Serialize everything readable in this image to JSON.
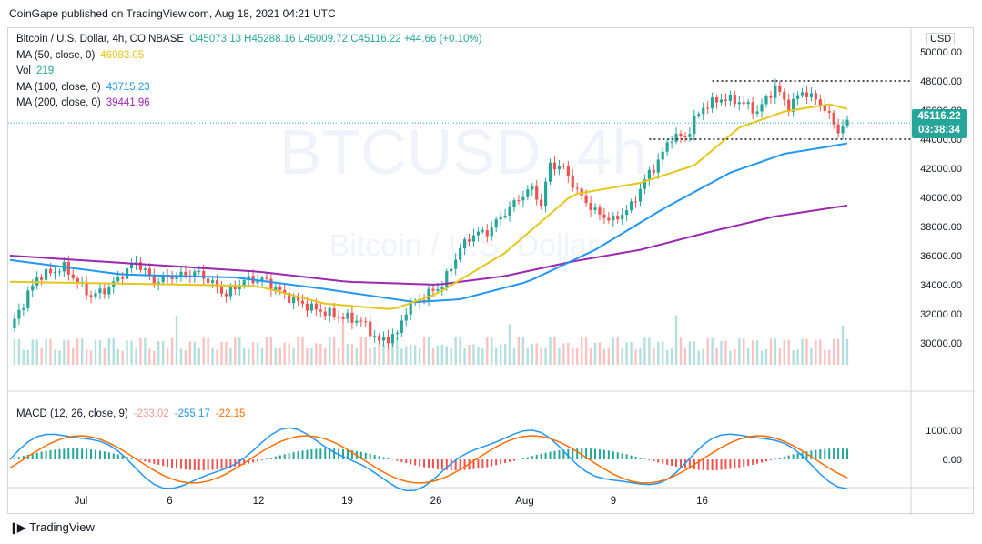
{
  "header": {
    "published": "CoinGape published on TradingView.com, Aug 18, 2021 04:21 UTC"
  },
  "legend": {
    "symbol": "Bitcoin / U.S. Dollar, 4h, COINBASE",
    "ohlc": "O45073.13 H45288.16 L45009.72 C45116.22 +44.66 (+0.10%)",
    "indicators": [
      {
        "label": "MA (50, close, 0)",
        "value": "46083.05",
        "color": "#e6c619"
      },
      {
        "label": "Vol",
        "value": "219",
        "color": "#26a69a"
      },
      {
        "label": "MA (100, close, 0)",
        "value": "43715.23",
        "color": "#2196f3"
      },
      {
        "label": "MA (200, close, 0)",
        "value": "39441.96",
        "color": "#9c27b0"
      }
    ]
  },
  "macd_legend": {
    "label": "MACD (12, 26, close, 9)",
    "values": [
      {
        "value": "-233.02",
        "color": "#ef9a9a"
      },
      {
        "value": "-255.17",
        "color": "#2196f3"
      },
      {
        "value": "-22.15",
        "color": "#ff6d00"
      }
    ]
  },
  "price_badge": {
    "price": "45116.22",
    "countdown": "03:38:34"
  },
  "currency": "USD",
  "watermark": {
    "ticker": "BTCUSD, 4h",
    "name": "Bitcoin / U.S. Dollar"
  },
  "footer": {
    "brand": "TradingView"
  },
  "chart_data": {
    "type": "candlestick",
    "x_ticks": [
      "Jul",
      "6",
      "12",
      "19",
      "26",
      "Aug",
      "9",
      "16"
    ],
    "y_ticks": [
      "30000.00",
      "32000.00",
      "34000.00",
      "36000.00",
      "38000.00",
      "40000.00",
      "42000.00",
      "44000.00",
      "46000.00",
      "48000.00",
      "50000.00"
    ],
    "macd_y_ticks": [
      "1000.00",
      "0.00"
    ],
    "ylim": [
      28500,
      51000
    ],
    "close_path": [
      [
        0,
        31000
      ],
      [
        6,
        34500
      ],
      [
        12,
        35200
      ],
      [
        18,
        33200
      ],
      [
        22,
        33800
      ],
      [
        28,
        35600
      ],
      [
        32,
        34200
      ],
      [
        36,
        34600
      ],
      [
        42,
        34800
      ],
      [
        48,
        33300
      ],
      [
        52,
        34300
      ],
      [
        56,
        34400
      ],
      [
        62,
        33100
      ],
      [
        67,
        32400
      ],
      [
        72,
        31900
      ],
      [
        78,
        31500
      ],
      [
        82,
        30100
      ],
      [
        86,
        30600
      ],
      [
        88,
        32300
      ],
      [
        92,
        33200
      ],
      [
        96,
        34000
      ],
      [
        98,
        35200
      ],
      [
        100,
        36500
      ],
      [
        103,
        37500
      ],
      [
        106,
        37600
      ],
      [
        110,
        39000
      ],
      [
        114,
        40200
      ],
      [
        116,
        40600
      ],
      [
        118,
        39500
      ],
      [
        120,
        42300
      ],
      [
        123,
        42000
      ],
      [
        126,
        40400
      ],
      [
        130,
        39000
      ],
      [
        134,
        38400
      ],
      [
        138,
        39400
      ],
      [
        141,
        41200
      ],
      [
        144,
        42500
      ],
      [
        147,
        44200
      ],
      [
        150,
        44100
      ],
      [
        152,
        45300
      ],
      [
        154,
        46200
      ],
      [
        158,
        46800
      ],
      [
        162,
        46600
      ],
      [
        166,
        45900
      ],
      [
        170,
        47600
      ],
      [
        173,
        46200
      ],
      [
        176,
        47300
      ],
      [
        180,
        46500
      ],
      [
        184,
        44600
      ],
      [
        186,
        45116
      ]
    ],
    "ma50": [
      [
        0,
        34200
      ],
      [
        20,
        34100
      ],
      [
        40,
        34000
      ],
      [
        55,
        33900
      ],
      [
        70,
        32700
      ],
      [
        85,
        32300
      ],
      [
        95,
        33400
      ],
      [
        110,
        36200
      ],
      [
        125,
        40200
      ],
      [
        140,
        41000
      ],
      [
        152,
        42200
      ],
      [
        162,
        44800
      ],
      [
        172,
        45900
      ],
      [
        182,
        46400
      ],
      [
        186,
        46083
      ]
    ],
    "ma100": [
      [
        0,
        35700
      ],
      [
        25,
        34700
      ],
      [
        50,
        34500
      ],
      [
        70,
        33700
      ],
      [
        90,
        32800
      ],
      [
        100,
        33000
      ],
      [
        115,
        34200
      ],
      [
        130,
        36400
      ],
      [
        145,
        39200
      ],
      [
        160,
        41700
      ],
      [
        172,
        43000
      ],
      [
        182,
        43500
      ],
      [
        186,
        43715
      ]
    ],
    "ma200": [
      [
        0,
        36000
      ],
      [
        30,
        35400
      ],
      [
        55,
        34900
      ],
      [
        75,
        34200
      ],
      [
        95,
        34000
      ],
      [
        110,
        34600
      ],
      [
        125,
        35600
      ],
      [
        140,
        36400
      ],
      [
        155,
        37600
      ],
      [
        170,
        38700
      ],
      [
        186,
        39442
      ]
    ],
    "resistance": 48000,
    "support": 44000,
    "bar_count": 186
  }
}
